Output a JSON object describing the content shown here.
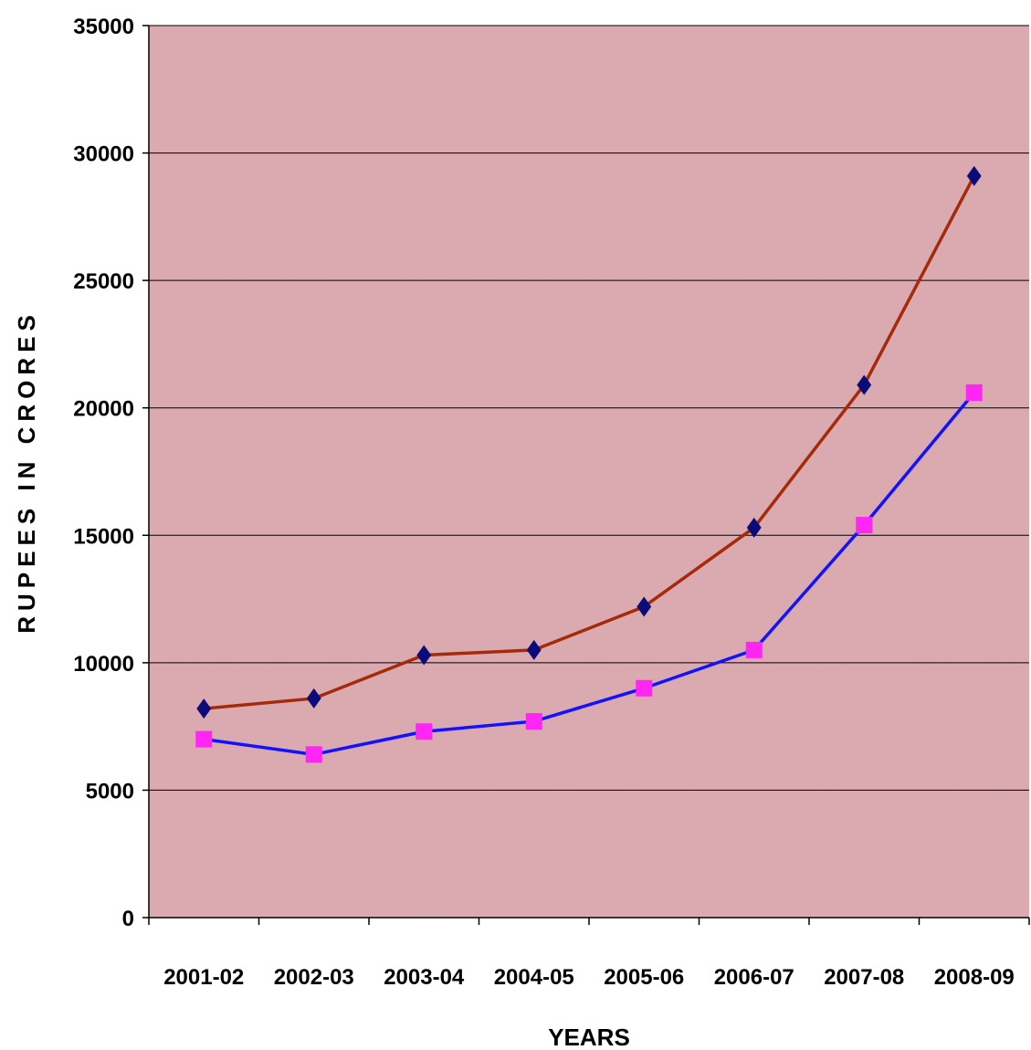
{
  "chart_data": {
    "type": "line",
    "title": "",
    "xlabel": "YEARS",
    "ylabel": "RUPEES IN CRORES",
    "categories": [
      "2001-02",
      "2002-03",
      "2003-04",
      "2004-05",
      "2005-06",
      "2006-07",
      "2007-08",
      "2008-09"
    ],
    "ylim": [
      0,
      35000
    ],
    "yticks": [
      0,
      5000,
      10000,
      15000,
      20000,
      25000,
      30000,
      35000
    ],
    "grid": true,
    "legend": "none",
    "plot_background": "#dcaab0",
    "series": [
      {
        "values": [
          8200,
          8600,
          10300,
          10500,
          12200,
          15300,
          20900,
          29100
        ],
        "line_color": "#a52a0a",
        "marker": "diamond",
        "marker_color": "#0b0b7a"
      },
      {
        "values": [
          7000,
          6400,
          7300,
          7700,
          9000,
          10500,
          15400,
          20600
        ],
        "line_color": "#1212ff",
        "marker": "square",
        "marker_color": "#ff26f4"
      }
    ]
  }
}
